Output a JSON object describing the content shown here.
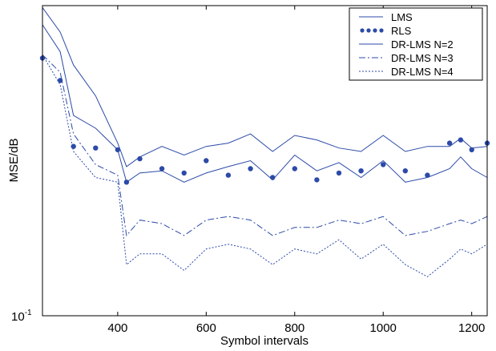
{
  "chart_data": {
    "type": "line",
    "xlabel": "Symbol intervals",
    "ylabel": "MSE/dB",
    "x_range": [
      230,
      1235
    ],
    "y_scale": "log",
    "y_range": [
      0.1,
      2.5
    ],
    "x_ticks": [
      {
        "value": 400,
        "label": "400"
      },
      {
        "value": 600,
        "label": "600"
      },
      {
        "value": 800,
        "label": "800"
      },
      {
        "value": 1000,
        "label": "1000"
      },
      {
        "value": 1200,
        "label": "1200"
      }
    ],
    "y_ticks": [
      {
        "value": 0.1,
        "base": "10",
        "exponent": "-1"
      }
    ],
    "grid": false,
    "legend_position": "top-right",
    "series_color": "#2c4aa8",
    "x": [
      230,
      270,
      300,
      350,
      400,
      420,
      450,
      500,
      550,
      600,
      650,
      700,
      750,
      800,
      850,
      900,
      950,
      1000,
      1050,
      1100,
      1150,
      1175,
      1200,
      1235
    ],
    "series": [
      {
        "name": "LMS",
        "style": "solid",
        "values": [
          2.45,
          1.9,
          1.35,
          0.98,
          0.6,
          0.47,
          0.52,
          0.58,
          0.53,
          0.58,
          0.6,
          0.66,
          0.55,
          0.65,
          0.62,
          0.57,
          0.55,
          0.65,
          0.55,
          0.58,
          0.58,
          0.63,
          0.57,
          0.58
        ]
      },
      {
        "name": "RLS",
        "style": "dots",
        "values": [
          1.45,
          1.15,
          0.58,
          0.57,
          0.56,
          0.4,
          0.51,
          0.46,
          0.44,
          0.5,
          0.43,
          0.46,
          0.42,
          0.46,
          0.41,
          0.44,
          0.45,
          0.48,
          0.45,
          0.43,
          0.6,
          0.62,
          0.56,
          0.6
        ]
      },
      {
        "name": "DR-LMS N=2",
        "style": "solid",
        "values": [
          2.05,
          1.55,
          0.8,
          0.7,
          0.56,
          0.4,
          0.44,
          0.45,
          0.4,
          0.44,
          0.47,
          0.5,
          0.41,
          0.53,
          0.45,
          0.49,
          0.42,
          0.5,
          0.4,
          0.42,
          0.46,
          0.52,
          0.46,
          0.42
        ]
      },
      {
        "name": "DR-LMS N=3",
        "style": "dashdot",
        "values": [
          1.5,
          1.25,
          0.66,
          0.48,
          0.43,
          0.23,
          0.27,
          0.26,
          0.23,
          0.27,
          0.28,
          0.27,
          0.23,
          0.25,
          0.25,
          0.27,
          0.26,
          0.28,
          0.23,
          0.24,
          0.26,
          0.27,
          0.26,
          0.28
        ]
      },
      {
        "name": "DR-LMS N=4",
        "style": "dotted",
        "values": [
          1.5,
          1.1,
          0.55,
          0.42,
          0.4,
          0.17,
          0.19,
          0.19,
          0.16,
          0.2,
          0.21,
          0.2,
          0.17,
          0.2,
          0.19,
          0.22,
          0.18,
          0.21,
          0.17,
          0.15,
          0.18,
          0.2,
          0.19,
          0.21
        ]
      }
    ]
  }
}
